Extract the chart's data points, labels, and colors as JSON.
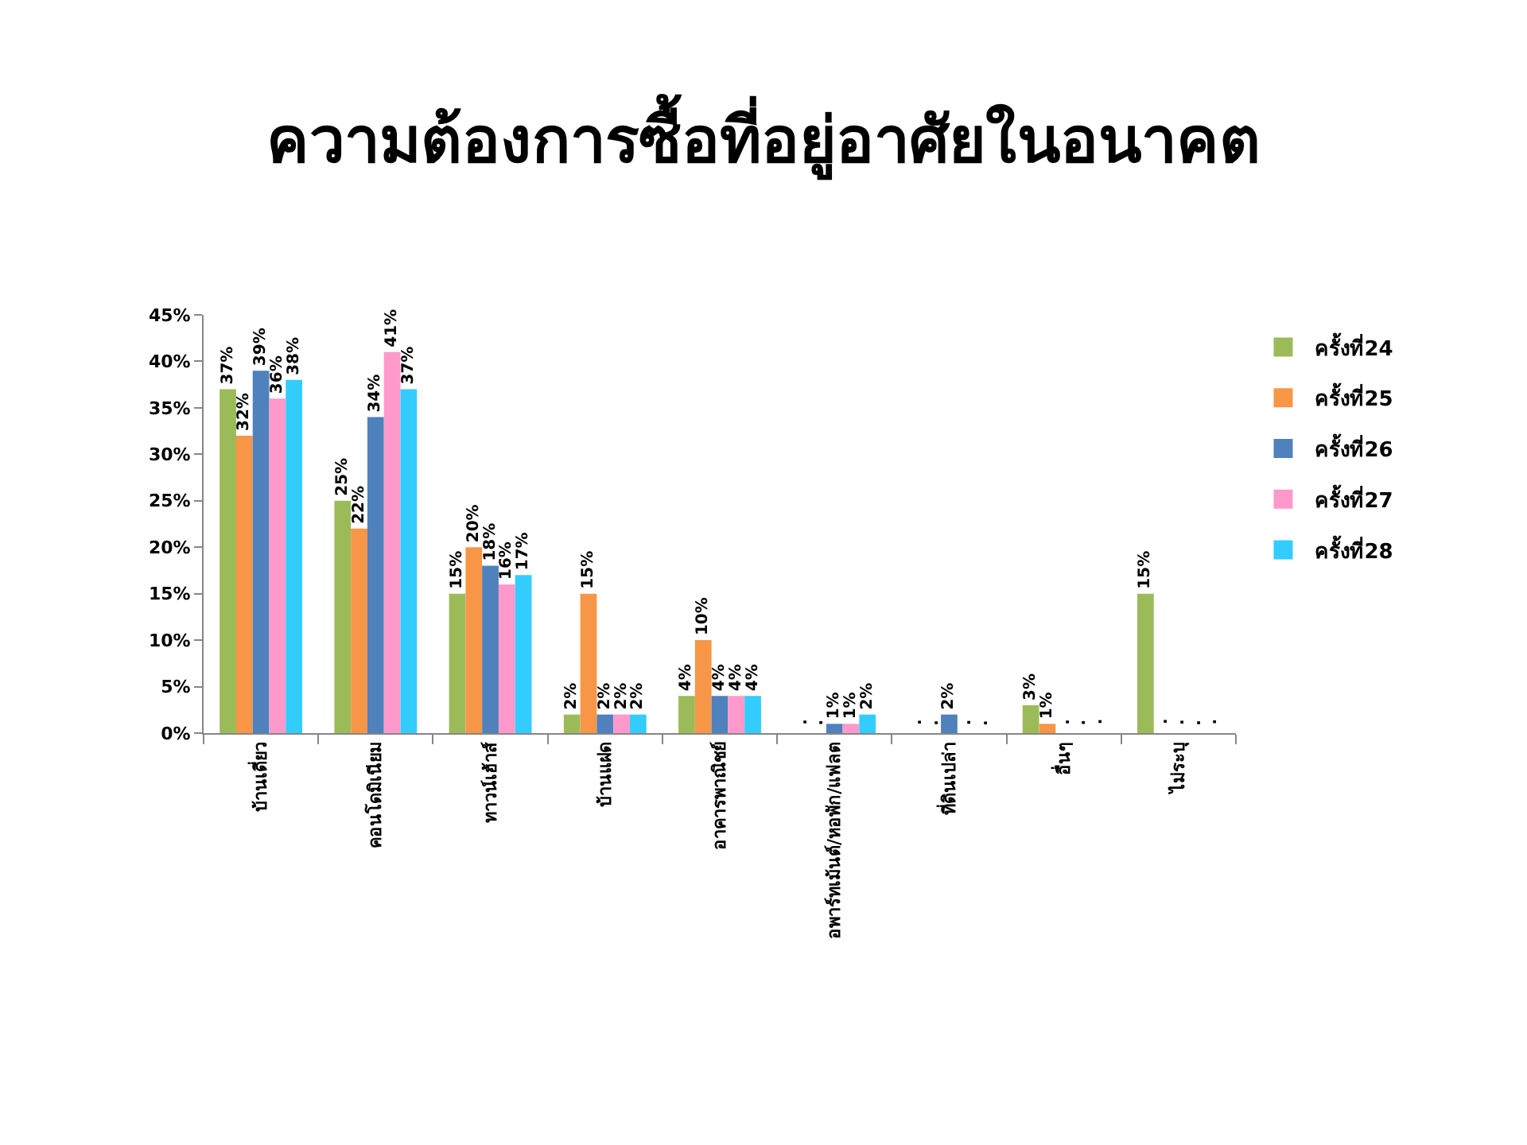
{
  "chart_data": {
    "type": "bar",
    "title": "ความต้องการซื้อที่อยู่อาศัยในอนาคต",
    "categories": [
      "บ้านเดี่ยว",
      "คอนโดมิเนียม",
      "ทาวน์เฮ้าส์",
      "บ้านแฝด",
      "อาคารพาณิชย์",
      "อพาร์ทเม้นต์/หอพัก/แฟลต",
      "ที่ดินเปล่า",
      "อื่นๆ",
      "ไม่ระบุ"
    ],
    "series": [
      {
        "name": "ครั้งที่24",
        "color": "#9bbb59",
        "values": [
          37,
          25,
          15,
          2,
          4,
          null,
          null,
          3,
          15
        ],
        "value_labels": [
          "37%",
          "25%",
          "15%",
          "2%",
          "4%",
          ".",
          ".",
          "3%",
          "15%"
        ]
      },
      {
        "name": "ครั้งที่25",
        "color": "#f79646",
        "values": [
          32,
          22,
          20,
          15,
          10,
          null,
          null,
          1,
          null
        ],
        "value_labels": [
          "32%",
          "22%",
          "20%",
          "15%",
          "10%",
          ".",
          ".",
          "1%",
          "."
        ]
      },
      {
        "name": "ครั้งที่26",
        "color": "#4f81bd",
        "values": [
          39,
          34,
          18,
          2,
          4,
          1,
          2,
          null,
          null
        ],
        "value_labels": [
          "39%",
          "34%",
          "18%",
          "2%",
          "4%",
          "1%",
          "2%",
          ".",
          "."
        ]
      },
      {
        "name": "ครั้งที่27",
        "color": "#ff99cc",
        "values": [
          36,
          41,
          16,
          2,
          4,
          1,
          null,
          null,
          null
        ],
        "value_labels": [
          "36%",
          "41%",
          "16%",
          "2%",
          "4%",
          "1%",
          ".",
          ".",
          "."
        ]
      },
      {
        "name": "ครั้งที่28",
        "color": "#33ccff",
        "values": [
          38,
          37,
          17,
          2,
          4,
          2,
          null,
          null,
          null
        ],
        "value_labels": [
          "38%",
          "37%",
          "17%",
          "2%",
          "4%",
          "2%",
          ".",
          ".",
          "."
        ]
      }
    ],
    "ylim": [
      0,
      45
    ],
    "yticks": [
      {
        "value": 0,
        "label": "0%"
      },
      {
        "value": 5,
        "label": "5%"
      },
      {
        "value": 10,
        "label": "10%"
      },
      {
        "value": 15,
        "label": "15%"
      },
      {
        "value": 20,
        "label": "20%"
      },
      {
        "value": 25,
        "label": "25%"
      },
      {
        "value": 30,
        "label": "30%"
      },
      {
        "value": 35,
        "label": "35%"
      },
      {
        "value": 40,
        "label": "40%"
      },
      {
        "value": 45,
        "label": "45%"
      }
    ],
    "legend": "right"
  }
}
